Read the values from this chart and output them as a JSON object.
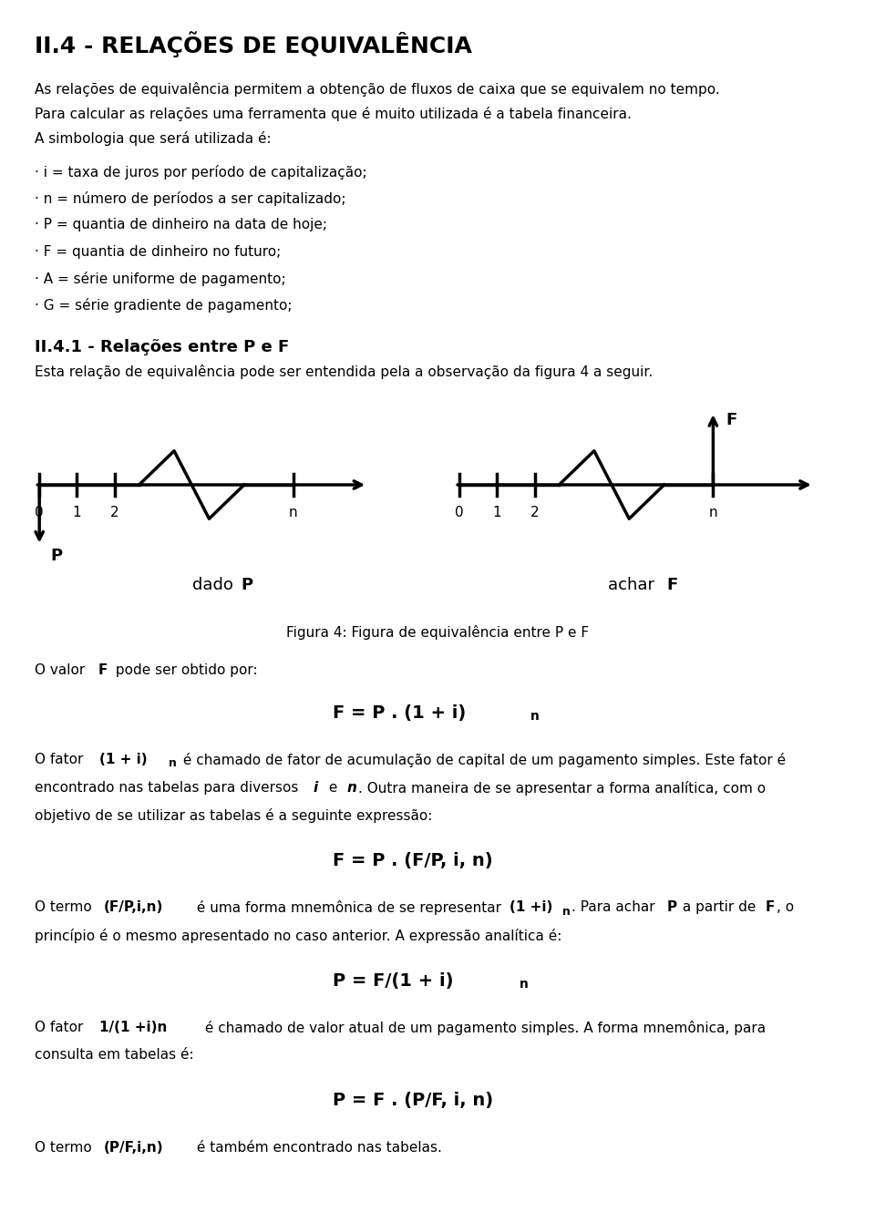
{
  "title": "II.4 - RELAÇÕES DE EQUIVALÊNCIA",
  "bg_color": "#ffffff",
  "text_color": "#000000",
  "fig_width": 9.6,
  "fig_height": 13.3,
  "bullet_items": [
    "· i = taxa de juros por período de capitalização;",
    "· n = número de períodos a ser capitalizado;",
    "· P = quantia de dinheiro na data de hoje;",
    "· F = quantia de dinheiro no futuro;",
    "· A = série uniforme de pagamento;",
    "· G = série gradiente de pagamento;"
  ],
  "dado_label": "dado P",
  "achar_label": "achar F",
  "figura_caption": "Figura 4: Figura de equivalência entre P e F"
}
